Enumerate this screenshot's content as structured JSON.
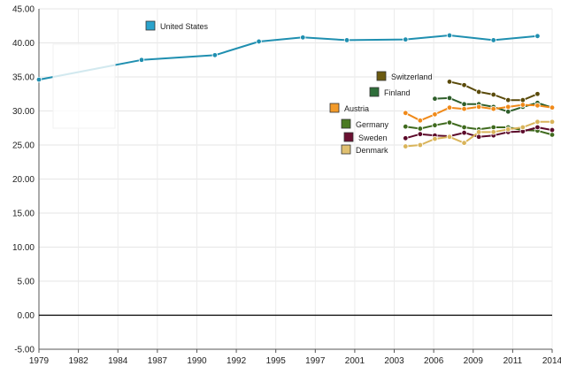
{
  "chart_data": {
    "type": "line",
    "x_ticks": [
      "1979",
      "1982",
      "1984",
      "1987",
      "1990",
      "1992",
      "1995",
      "1997",
      "2001",
      "2003",
      "2006",
      "2009",
      "2011",
      "2014"
    ],
    "y_ticks": [
      "45.00",
      "40.00",
      "35.00",
      "30.00",
      "25.00",
      "20.00",
      "15.00",
      "10.00",
      "5.00",
      "0.00",
      "-5.00"
    ],
    "xlim": [
      1979,
      2014
    ],
    "ylim": [
      -5,
      45
    ],
    "grid": true,
    "series": [
      {
        "name": "United States",
        "color": "#1f8fb0",
        "points": [
          [
            1979,
            34.6
          ],
          [
            1986,
            37.5
          ],
          [
            1991,
            38.2
          ],
          [
            1994,
            40.2
          ],
          [
            1997,
            40.8
          ],
          [
            2000,
            40.4
          ],
          [
            2004,
            40.5
          ],
          [
            2007,
            41.1
          ],
          [
            2010,
            40.4
          ],
          [
            2013,
            41.0
          ]
        ]
      },
      {
        "name": "Switzerland",
        "color": "#5a4a0a",
        "points": [
          [
            2007,
            34.3
          ],
          [
            2008,
            33.8
          ],
          [
            2009,
            32.8
          ],
          [
            2010,
            32.4
          ],
          [
            2011,
            31.6
          ],
          [
            2012,
            31.6
          ],
          [
            2013,
            32.5
          ]
        ]
      },
      {
        "name": "Finland",
        "color": "#2e5e2a",
        "points": [
          [
            2006,
            31.8
          ],
          [
            2007,
            31.9
          ],
          [
            2008,
            31.0
          ],
          [
            2009,
            31.0
          ],
          [
            2010,
            30.6
          ],
          [
            2011,
            29.9
          ],
          [
            2012,
            30.6
          ],
          [
            2013,
            31.2
          ],
          [
            2014,
            30.5
          ]
        ]
      },
      {
        "name": "Austria",
        "color": "#f08a1a",
        "points": [
          [
            2004,
            29.7
          ],
          [
            2005,
            28.6
          ],
          [
            2006,
            29.5
          ],
          [
            2007,
            30.5
          ],
          [
            2008,
            30.3
          ],
          [
            2009,
            30.6
          ],
          [
            2010,
            30.3
          ],
          [
            2011,
            30.6
          ],
          [
            2012,
            30.9
          ],
          [
            2013,
            30.8
          ],
          [
            2014,
            30.5
          ]
        ]
      },
      {
        "name": "Germany",
        "color": "#3f6a1e",
        "points": [
          [
            2004,
            27.7
          ],
          [
            2005,
            27.4
          ],
          [
            2006,
            27.9
          ],
          [
            2007,
            28.3
          ],
          [
            2008,
            27.6
          ],
          [
            2009,
            27.3
          ],
          [
            2010,
            27.6
          ],
          [
            2011,
            27.6
          ],
          [
            2012,
            27.2
          ],
          [
            2013,
            27.1
          ],
          [
            2014,
            26.5
          ]
        ]
      },
      {
        "name": "Sweden",
        "color": "#5c0a2a",
        "points": [
          [
            2004,
            26.0
          ],
          [
            2005,
            26.6
          ],
          [
            2006,
            26.4
          ],
          [
            2007,
            26.3
          ],
          [
            2008,
            26.8
          ],
          [
            2009,
            26.2
          ],
          [
            2010,
            26.4
          ],
          [
            2011,
            26.9
          ],
          [
            2012,
            27.0
          ],
          [
            2013,
            27.6
          ],
          [
            2014,
            27.2
          ]
        ]
      },
      {
        "name": "Denmark",
        "color": "#d9b45a",
        "points": [
          [
            2004,
            24.8
          ],
          [
            2005,
            25.0
          ],
          [
            2006,
            25.9
          ],
          [
            2007,
            26.2
          ],
          [
            2008,
            25.3
          ],
          [
            2009,
            26.9
          ],
          [
            2010,
            26.9
          ],
          [
            2011,
            27.3
          ],
          [
            2012,
            27.6
          ],
          [
            2013,
            28.4
          ],
          [
            2014,
            28.4
          ]
        ]
      }
    ],
    "legend": [
      {
        "name": "United States",
        "color": "#1f8fb0",
        "swatch_color": "#2aa3cc"
      },
      {
        "name": "Switzerland",
        "color": "#5a4a0a",
        "swatch_color": "#6b5a10"
      },
      {
        "name": "Finland",
        "color": "#2e5e2a",
        "swatch_color": "#2e6e3a"
      },
      {
        "name": "Austria",
        "color": "#f08a1a",
        "swatch_color": "#f29a2a"
      },
      {
        "name": "Germany",
        "color": "#3f6a1e",
        "swatch_color": "#4a7a22"
      },
      {
        "name": "Sweden",
        "color": "#5c0a2a",
        "swatch_color": "#6a1032"
      },
      {
        "name": "Denmark",
        "color": "#d9b45a",
        "swatch_color": "#e0c070"
      }
    ]
  }
}
